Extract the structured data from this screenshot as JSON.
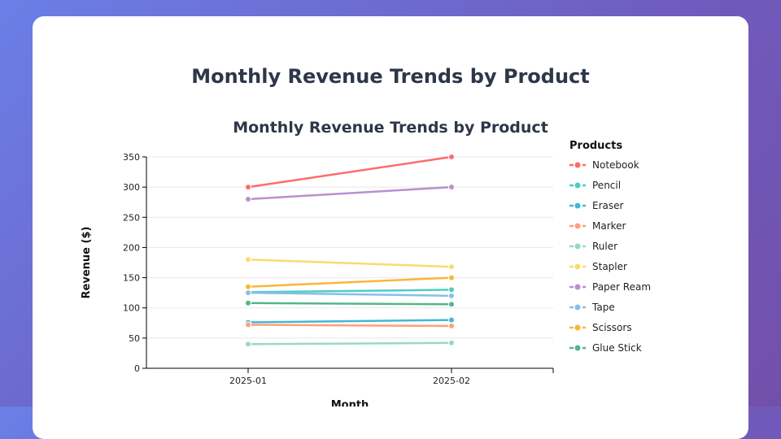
{
  "page_title": "Monthly Revenue Trends by Product",
  "chart_data": {
    "type": "line",
    "title": "Monthly Revenue Trends by Product",
    "xlabel": "Month",
    "ylabel": "Revenue ($)",
    "categories": [
      "2025-01",
      "2025-02"
    ],
    "ylim": [
      0,
      350
    ],
    "yticks": [
      0,
      50,
      100,
      150,
      200,
      250,
      300,
      350
    ],
    "grid": true,
    "legend": {
      "title": "Products",
      "placement": "right"
    },
    "series": [
      {
        "name": "Notebook",
        "color": "#ff6b6b",
        "values": [
          300,
          350
        ]
      },
      {
        "name": "Pencil",
        "color": "#4ecdc4",
        "values": [
          126,
          130
        ]
      },
      {
        "name": "Eraser",
        "color": "#45b7d1",
        "values": [
          76,
          80
        ]
      },
      {
        "name": "Marker",
        "color": "#ffa07a",
        "values": [
          72,
          70
        ]
      },
      {
        "name": "Ruler",
        "color": "#98d8c8",
        "values": [
          40,
          42
        ]
      },
      {
        "name": "Stapler",
        "color": "#f7dc6f",
        "values": [
          180,
          168
        ]
      },
      {
        "name": "Paper Ream",
        "color": "#bb8fce",
        "values": [
          280,
          300
        ]
      },
      {
        "name": "Tape",
        "color": "#85c1e9",
        "values": [
          125,
          120
        ]
      },
      {
        "name": "Scissors",
        "color": "#f8b739",
        "values": [
          135,
          150
        ]
      },
      {
        "name": "Glue Stick",
        "color": "#52b788",
        "values": [
          108,
          106
        ]
      }
    ]
  }
}
